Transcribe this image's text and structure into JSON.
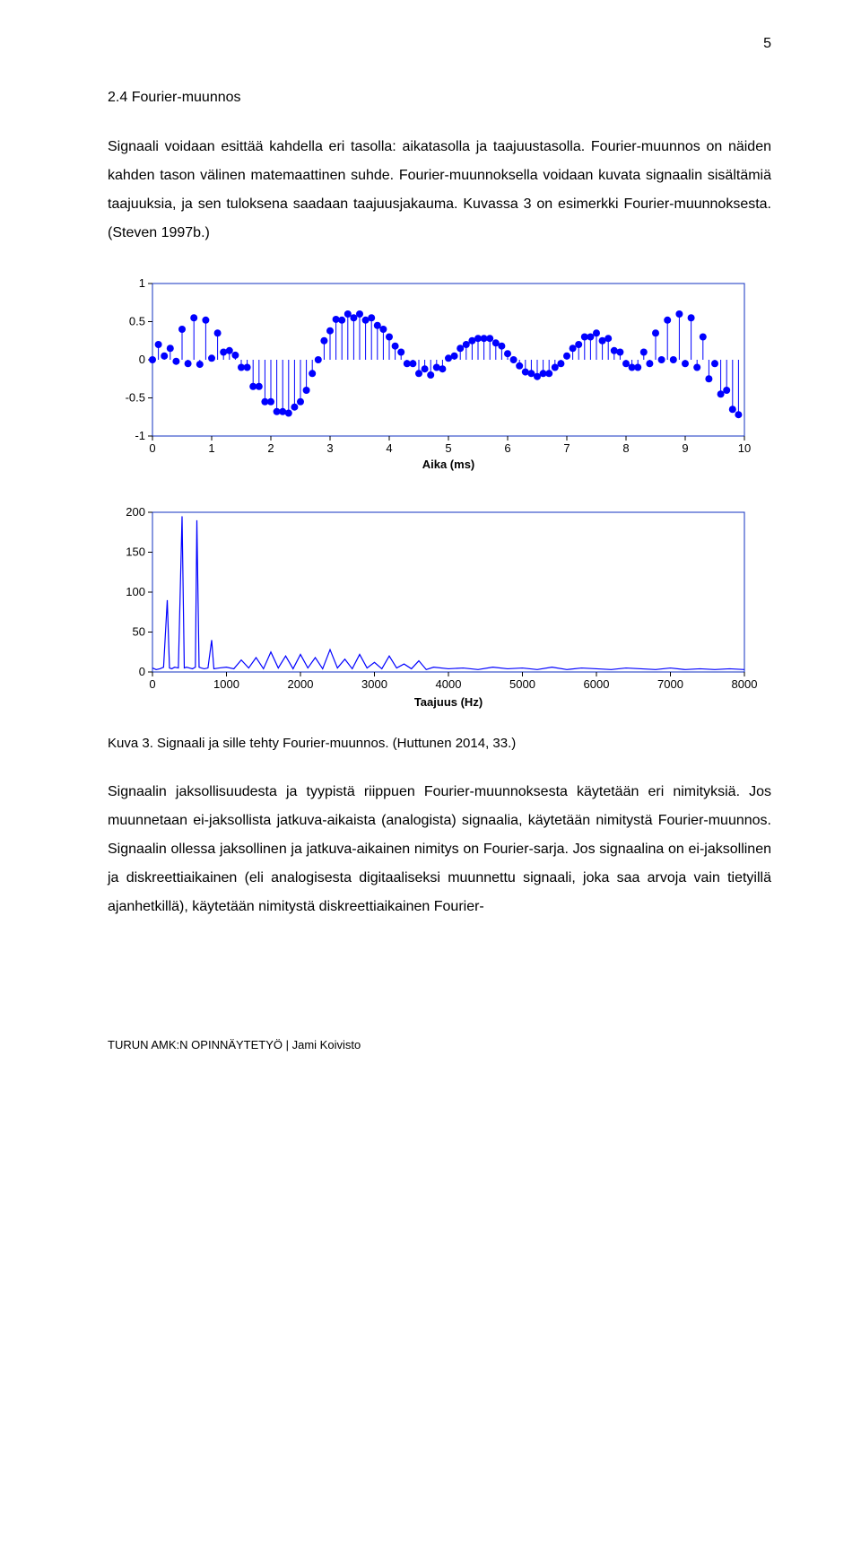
{
  "page_number": "5",
  "heading": "2.4 Fourier-muunnos",
  "para1": "Signaali voidaan esittää kahdella eri tasolla: aikatasolla ja taajuustasolla. Fourier-muunnos on näiden kahden tason välinen matemaattinen suhde. Fourier-muunnoksella voidaan kuvata signaalin sisältämiä taajuuksia, ja sen tuloksena saadaan taajuusjakauma. Kuvassa 3 on esimerkki Fourier-muunnoksesta. (Steven 1997b.)",
  "caption": "Kuva 3. Signaali ja sille tehty Fourier-muunnos. (Huttunen 2014, 33.)",
  "para2": "Signaalin jaksollisuudesta ja tyypistä riippuen Fourier-muunnoksesta käytetään eri nimityksiä. Jos muunnetaan ei-jaksollista jatkuva-aikaista (analogista) signaalia, käytetään nimitystä Fourier-muunnos. Signaalin ollessa jaksollinen ja jatkuva-aikainen nimitys on Fourier-sarja. Jos signaalina on ei-jaksollinen ja diskreettiaikainen (eli analogisesta digitaaliseksi muunnettu signaali, joka saa arvoja vain tietyillä ajanhetkillä), käytetään nimitystä diskreettiaikainen Fourier-",
  "footer": "TURUN AMK:N OPINNÄYTETYÖ | Jami Koivisto",
  "time_chart": {
    "type": "stem",
    "xlabel": "Aika (ms)",
    "xlim": [
      0,
      10
    ],
    "xticks": [
      0,
      1,
      2,
      3,
      4,
      5,
      6,
      7,
      8,
      9,
      10
    ],
    "ylim": [
      -1,
      1
    ],
    "yticks": [
      -1,
      -0.5,
      0,
      0.5,
      1
    ],
    "ytick_labels": [
      "-1",
      "-0.5",
      "0",
      "0.5",
      "1"
    ],
    "marker_color": "#0000ff",
    "stem_color": "#0000ff",
    "box_color": "#1030c0",
    "tick_color": "#000000",
    "tick_fontsize": 13,
    "label_fontsize": 13,
    "points": [
      [
        0.0,
        0.0
      ],
      [
        0.1,
        0.2
      ],
      [
        0.2,
        0.05
      ],
      [
        0.3,
        0.15
      ],
      [
        0.4,
        -0.02
      ],
      [
        0.5,
        0.4
      ],
      [
        0.6,
        -0.05
      ],
      [
        0.7,
        0.55
      ],
      [
        0.8,
        -0.06
      ],
      [
        0.9,
        0.52
      ],
      [
        1.0,
        0.02
      ],
      [
        1.1,
        0.35
      ],
      [
        1.2,
        0.1
      ],
      [
        1.3,
        0.12
      ],
      [
        1.4,
        0.06
      ],
      [
        1.5,
        -0.1
      ],
      [
        1.6,
        -0.1
      ],
      [
        1.7,
        -0.35
      ],
      [
        1.8,
        -0.35
      ],
      [
        1.9,
        -0.55
      ],
      [
        2.0,
        -0.55
      ],
      [
        2.1,
        -0.68
      ],
      [
        2.2,
        -0.68
      ],
      [
        2.3,
        -0.7
      ],
      [
        2.4,
        -0.62
      ],
      [
        2.5,
        -0.55
      ],
      [
        2.6,
        -0.4
      ],
      [
        2.7,
        -0.18
      ],
      [
        2.8,
        0.0
      ],
      [
        2.9,
        0.25
      ],
      [
        3.0,
        0.38
      ],
      [
        3.1,
        0.53
      ],
      [
        3.2,
        0.52
      ],
      [
        3.3,
        0.6
      ],
      [
        3.4,
        0.55
      ],
      [
        3.5,
        0.6
      ],
      [
        3.6,
        0.52
      ],
      [
        3.7,
        0.55
      ],
      [
        3.8,
        0.45
      ],
      [
        3.9,
        0.4
      ],
      [
        4.0,
        0.3
      ],
      [
        4.1,
        0.18
      ],
      [
        4.2,
        0.1
      ],
      [
        4.3,
        -0.05
      ],
      [
        4.4,
        -0.05
      ],
      [
        4.5,
        -0.18
      ],
      [
        4.6,
        -0.12
      ],
      [
        4.7,
        -0.2
      ],
      [
        4.8,
        -0.1
      ],
      [
        4.9,
        -0.12
      ],
      [
        5.0,
        0.02
      ],
      [
        5.1,
        0.05
      ],
      [
        5.2,
        0.15
      ],
      [
        5.3,
        0.2
      ],
      [
        5.4,
        0.25
      ],
      [
        5.5,
        0.28
      ],
      [
        5.6,
        0.28
      ],
      [
        5.7,
        0.28
      ],
      [
        5.8,
        0.22
      ],
      [
        5.9,
        0.18
      ],
      [
        6.0,
        0.08
      ],
      [
        6.1,
        0.0
      ],
      [
        6.2,
        -0.08
      ],
      [
        6.3,
        -0.16
      ],
      [
        6.4,
        -0.18
      ],
      [
        6.5,
        -0.22
      ],
      [
        6.6,
        -0.18
      ],
      [
        6.7,
        -0.18
      ],
      [
        6.8,
        -0.1
      ],
      [
        6.9,
        -0.05
      ],
      [
        7.0,
        0.05
      ],
      [
        7.1,
        0.15
      ],
      [
        7.2,
        0.2
      ],
      [
        7.3,
        0.3
      ],
      [
        7.4,
        0.3
      ],
      [
        7.5,
        0.35
      ],
      [
        7.6,
        0.25
      ],
      [
        7.7,
        0.28
      ],
      [
        7.8,
        0.12
      ],
      [
        7.9,
        0.1
      ],
      [
        8.0,
        -0.05
      ],
      [
        8.1,
        -0.1
      ],
      [
        8.2,
        -0.1
      ],
      [
        8.3,
        0.1
      ],
      [
        8.4,
        -0.05
      ],
      [
        8.5,
        0.35
      ],
      [
        8.6,
        0.0
      ],
      [
        8.7,
        0.52
      ],
      [
        8.8,
        0.0
      ],
      [
        8.9,
        0.6
      ],
      [
        9.0,
        -0.05
      ],
      [
        9.1,
        0.55
      ],
      [
        9.2,
        -0.1
      ],
      [
        9.3,
        0.3
      ],
      [
        9.4,
        -0.25
      ],
      [
        9.5,
        -0.05
      ],
      [
        9.6,
        -0.45
      ],
      [
        9.7,
        -0.4
      ],
      [
        9.8,
        -0.65
      ],
      [
        9.9,
        -0.72
      ]
    ]
  },
  "freq_chart": {
    "type": "line",
    "xlabel": "Taajuus (Hz)",
    "xlim": [
      0,
      8000
    ],
    "xticks": [
      0,
      1000,
      2000,
      3000,
      4000,
      5000,
      6000,
      7000,
      8000
    ],
    "ylim": [
      0,
      200
    ],
    "yticks": [
      0,
      50,
      100,
      150,
      200
    ],
    "line_color": "#0000ff",
    "box_color": "#1030c0",
    "tick_color": "#000000",
    "tick_fontsize": 13,
    "label_fontsize": 13,
    "points": [
      [
        0,
        5
      ],
      [
        50,
        3
      ],
      [
        100,
        4
      ],
      [
        150,
        6
      ],
      [
        200,
        90
      ],
      [
        230,
        5
      ],
      [
        260,
        4
      ],
      [
        300,
        6
      ],
      [
        350,
        5
      ],
      [
        400,
        195
      ],
      [
        430,
        5
      ],
      [
        460,
        6
      ],
      [
        500,
        5
      ],
      [
        540,
        4
      ],
      [
        580,
        6
      ],
      [
        600,
        190
      ],
      [
        630,
        6
      ],
      [
        660,
        5
      ],
      [
        700,
        4
      ],
      [
        750,
        5
      ],
      [
        800,
        40
      ],
      [
        830,
        4
      ],
      [
        900,
        5
      ],
      [
        1000,
        6
      ],
      [
        1100,
        4
      ],
      [
        1200,
        15
      ],
      [
        1300,
        5
      ],
      [
        1400,
        18
      ],
      [
        1500,
        4
      ],
      [
        1600,
        25
      ],
      [
        1700,
        5
      ],
      [
        1800,
        20
      ],
      [
        1900,
        4
      ],
      [
        2000,
        22
      ],
      [
        2100,
        5
      ],
      [
        2200,
        18
      ],
      [
        2300,
        4
      ],
      [
        2400,
        28
      ],
      [
        2500,
        5
      ],
      [
        2600,
        16
      ],
      [
        2700,
        4
      ],
      [
        2800,
        22
      ],
      [
        2900,
        5
      ],
      [
        3000,
        12
      ],
      [
        3100,
        4
      ],
      [
        3200,
        20
      ],
      [
        3300,
        5
      ],
      [
        3400,
        10
      ],
      [
        3500,
        4
      ],
      [
        3600,
        14
      ],
      [
        3700,
        3
      ],
      [
        3800,
        6
      ],
      [
        4000,
        4
      ],
      [
        4200,
        5
      ],
      [
        4400,
        3
      ],
      [
        4600,
        6
      ],
      [
        4800,
        4
      ],
      [
        5000,
        5
      ],
      [
        5200,
        3
      ],
      [
        5400,
        6
      ],
      [
        5600,
        3
      ],
      [
        5800,
        5
      ],
      [
        6000,
        4
      ],
      [
        6200,
        3
      ],
      [
        6400,
        5
      ],
      [
        6600,
        4
      ],
      [
        6800,
        3
      ],
      [
        7000,
        5
      ],
      [
        7200,
        3
      ],
      [
        7400,
        4
      ],
      [
        7600,
        3
      ],
      [
        7800,
        4
      ],
      [
        8000,
        3
      ]
    ]
  }
}
